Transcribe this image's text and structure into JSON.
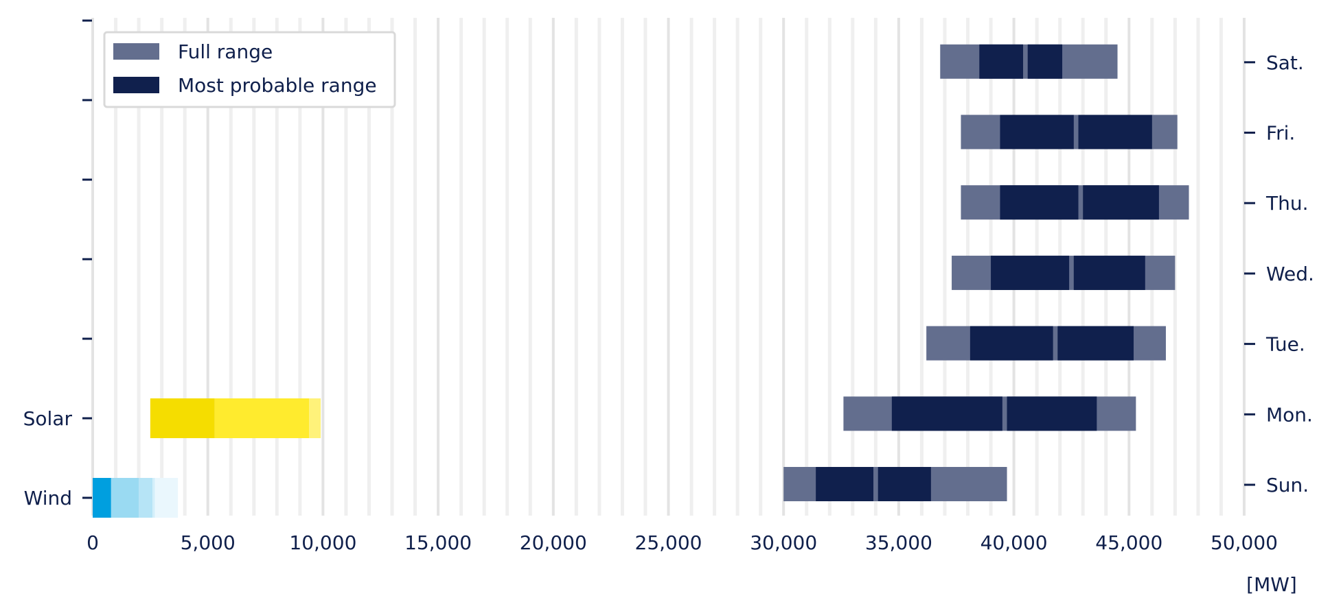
{
  "chart_data": {
    "type": "bar",
    "orientation": "horizontal",
    "x_unit_label": "[MW]",
    "xlim": [
      0,
      50000
    ],
    "x_ticks": [
      0,
      5000,
      10000,
      15000,
      20000,
      25000,
      30000,
      35000,
      40000,
      45000,
      50000
    ],
    "x_tick_labels": [
      "0",
      "5,000",
      "10,000",
      "15,000",
      "20,000",
      "25,000",
      "30,000",
      "35,000",
      "40,000",
      "45,000",
      "50,000"
    ],
    "grid": true,
    "legend": {
      "placement": "top-left",
      "entries": [
        {
          "label": "Full range",
          "color": "#636e8e"
        },
        {
          "label": "Most probable range",
          "color": "#10204d"
        }
      ]
    },
    "left_categories": [
      "Wind",
      "Solar"
    ],
    "right_categories": [
      "Sun.",
      "Mon.",
      "Tue.",
      "Wed.",
      "Thu.",
      "Fri.",
      "Sat."
    ],
    "colors": {
      "full_range": "#636e8e",
      "most_probable": "#10204d",
      "wind": [
        "#009fdf",
        "#9adaf2",
        "#b6e4f6",
        "#d3effa",
        "#eaf7fd"
      ],
      "solar": [
        "#f5dd00",
        "#ffeb2e",
        "#fff27a"
      ],
      "axis_text": "#0f1f4b"
    },
    "wind_segments": [
      {
        "start": 0,
        "end": 800
      },
      {
        "start": 800,
        "end": 2000
      },
      {
        "start": 2000,
        "end": 2600
      },
      {
        "start": 2600,
        "end": 2700
      },
      {
        "start": 2700,
        "end": 3700
      }
    ],
    "solar_segments": [
      {
        "start": 2500,
        "end": 5300
      },
      {
        "start": 5300,
        "end": 9400
      },
      {
        "start": 9400,
        "end": 9900
      }
    ],
    "days": [
      {
        "day": "Sun.",
        "full_range": [
          30000,
          39700
        ],
        "most_probable": [
          [
            31400,
            33900
          ],
          [
            34100,
            36400
          ]
        ]
      },
      {
        "day": "Mon.",
        "full_range": [
          32600,
          45300
        ],
        "most_probable": [
          [
            34700,
            39500
          ],
          [
            39700,
            43600
          ]
        ]
      },
      {
        "day": "Tue.",
        "full_range": [
          36200,
          46600
        ],
        "most_probable": [
          [
            38100,
            41700
          ],
          [
            41900,
            45200
          ]
        ]
      },
      {
        "day": "Wed.",
        "full_range": [
          37300,
          47000
        ],
        "most_probable": [
          [
            39000,
            42400
          ],
          [
            42600,
            45700
          ]
        ]
      },
      {
        "day": "Thu.",
        "full_range": [
          37700,
          47600
        ],
        "most_probable": [
          [
            39400,
            42800
          ],
          [
            43000,
            46300
          ]
        ]
      },
      {
        "day": "Fri.",
        "full_range": [
          37700,
          47100
        ],
        "most_probable": [
          [
            39400,
            42600
          ],
          [
            42800,
            46000
          ]
        ]
      },
      {
        "day": "Sat.",
        "full_range": [
          36800,
          44500
        ],
        "most_probable": [
          [
            38500,
            40400
          ],
          [
            40600,
            42100
          ]
        ]
      }
    ]
  }
}
